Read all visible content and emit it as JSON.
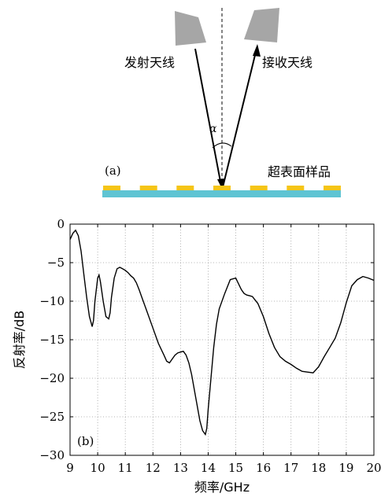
{
  "diagram": {
    "tx_label": "发射天线",
    "rx_label": "接收天线",
    "angle_label": "α",
    "panel_label": "(a)",
    "surface_label": "超表面样品",
    "colors": {
      "antenna": "#a6a6a6",
      "substrate": "#5ec4d3",
      "patch": "#f5c518",
      "beam": "#000000"
    },
    "patch_count": 7
  },
  "chart_data": {
    "type": "line",
    "panel_label": "(b)",
    "xlabel": "频率/GHz",
    "ylabel": "反射率/dB",
    "xlim": [
      9,
      20
    ],
    "ylim": [
      -30,
      0
    ],
    "xticks": [
      9,
      10,
      11,
      12,
      13,
      14,
      15,
      16,
      17,
      18,
      19,
      20
    ],
    "yticks": [
      0,
      -5,
      -10,
      -15,
      -20,
      -25,
      -30
    ],
    "ytick_labels": [
      "0",
      "−5",
      "−10",
      "−15",
      "−20",
      "−25",
      "−30"
    ],
    "grid": true,
    "line_color": "#000000",
    "series": [
      {
        "x": [
          9.0,
          9.1,
          9.2,
          9.3,
          9.4,
          9.5,
          9.6,
          9.7,
          9.8,
          9.85,
          9.9,
          10.0,
          10.05,
          10.1,
          10.2,
          10.3,
          10.4,
          10.45,
          10.5,
          10.6,
          10.7,
          10.8,
          10.9,
          11.0,
          11.1,
          11.2,
          11.3,
          11.4,
          11.5,
          11.6,
          11.8,
          12.0,
          12.2,
          12.4,
          12.5,
          12.6,
          12.7,
          12.8,
          12.9,
          13.0,
          13.1,
          13.2,
          13.3,
          13.4,
          13.5,
          13.6,
          13.7,
          13.8,
          13.9,
          13.95,
          14.0,
          14.1,
          14.2,
          14.3,
          14.4,
          14.6,
          14.8,
          15.0,
          15.2,
          15.3,
          15.4,
          15.5,
          15.6,
          15.8,
          16.0,
          16.2,
          16.4,
          16.6,
          16.8,
          17.0,
          17.2,
          17.4,
          17.6,
          17.8,
          18.0,
          18.2,
          18.4,
          18.6,
          18.8,
          19.0,
          19.2,
          19.4,
          19.6,
          19.8,
          20.0
        ],
        "y": [
          -2.0,
          -1.2,
          -0.8,
          -1.5,
          -3.5,
          -6.5,
          -9.5,
          -12.0,
          -13.3,
          -12.5,
          -10.0,
          -7.0,
          -6.6,
          -7.5,
          -10.0,
          -12.0,
          -12.3,
          -11.5,
          -9.5,
          -7.0,
          -5.8,
          -5.6,
          -5.8,
          -6.0,
          -6.3,
          -6.7,
          -7.0,
          -7.6,
          -8.5,
          -9.5,
          -11.5,
          -13.5,
          -15.5,
          -17.0,
          -17.8,
          -18.0,
          -17.5,
          -17.0,
          -16.7,
          -16.6,
          -16.5,
          -17.0,
          -18.0,
          -19.5,
          -21.5,
          -23.5,
          -25.5,
          -26.8,
          -27.3,
          -26.5,
          -24.0,
          -20.0,
          -16.0,
          -13.0,
          -11.0,
          -9.0,
          -7.2,
          -7.0,
          -8.5,
          -9.0,
          -9.2,
          -9.3,
          -9.4,
          -10.3,
          -12.0,
          -14.2,
          -16.0,
          -17.2,
          -17.8,
          -18.2,
          -18.7,
          -19.1,
          -19.2,
          -19.3,
          -18.5,
          -17.2,
          -16.0,
          -14.8,
          -12.8,
          -10.2,
          -8.0,
          -7.2,
          -6.8,
          -7.0,
          -7.3
        ]
      }
    ]
  }
}
